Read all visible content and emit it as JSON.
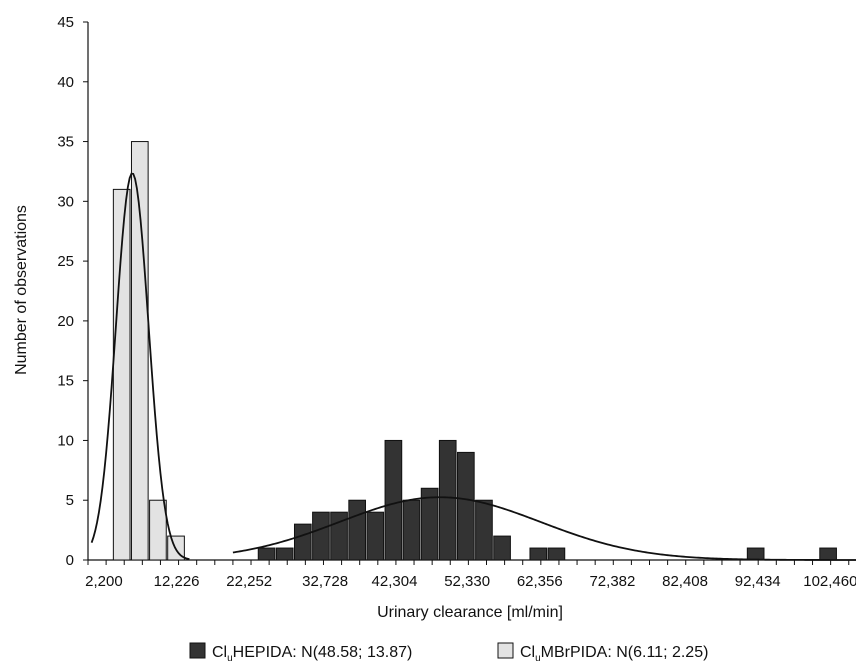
{
  "chart_data": {
    "type": "bar",
    "title": "",
    "xlabel": "Urinary clearance [ml/min]",
    "ylabel": "Number of observations",
    "ylim": [
      0,
      45
    ],
    "xlim": [
      0,
      106
    ],
    "y_ticks": [
      "0",
      "5",
      "10",
      "15",
      "20",
      "25",
      "30",
      "35",
      "40",
      "45"
    ],
    "y_tick_values": [
      0,
      5,
      10,
      15,
      20,
      25,
      30,
      35,
      40,
      45
    ],
    "x_tick_labels": [
      "2,200",
      "12,226",
      "22,252",
      "32,728",
      "42,304",
      "52,330",
      "62,356",
      "72,382",
      "82,408",
      "92,434",
      "102,460"
    ],
    "x_tick_values": [
      2.2,
      12.226,
      22.252,
      32.728,
      42.304,
      52.33,
      62.356,
      72.382,
      82.408,
      92.434,
      102.46
    ],
    "grid": false,
    "legend_position": "bottom",
    "series": [
      {
        "name": "Cl HEPIDA: N(48.58; 13.87)",
        "name_base": "Cl",
        "name_sub": "u",
        "name_rest": "HEPIDA: N(48.58; 13.87)",
        "color": "#333333",
        "bin_starts": [
          23.5,
          26,
          28.5,
          31,
          33.5,
          36,
          38.5,
          41,
          43.5,
          46,
          48.5,
          51,
          53.5,
          56,
          58.5,
          61,
          63.5,
          66,
          68.5,
          71,
          73.5,
          76,
          78.5,
          81,
          83.5,
          86,
          88.5,
          91,
          93.5,
          96,
          98.5,
          101
        ],
        "values": [
          1,
          1,
          3,
          4,
          4,
          5,
          4,
          10,
          5,
          6,
          10,
          9,
          5,
          2,
          0,
          1,
          1,
          0,
          0,
          0,
          0,
          0,
          0,
          0,
          0,
          0,
          0,
          1,
          0,
          0,
          0,
          1
        ],
        "fit": {
          "mean": 48.58,
          "sd": 13.87
        }
      },
      {
        "name": "Cl MBrPIDA: N(6.11; 2.25)",
        "name_base": "Cl",
        "name_sub": "u",
        "name_rest": "MBrPIDA: N(6.11; 2.25)",
        "color": "#e3e3e3",
        "bin_starts": [
          3.5,
          6,
          8.5,
          11
        ],
        "values": [
          31,
          35,
          5,
          2
        ],
        "fit": {
          "mean": 6.11,
          "sd": 2.25
        }
      }
    ],
    "bin_width": 2.5
  }
}
